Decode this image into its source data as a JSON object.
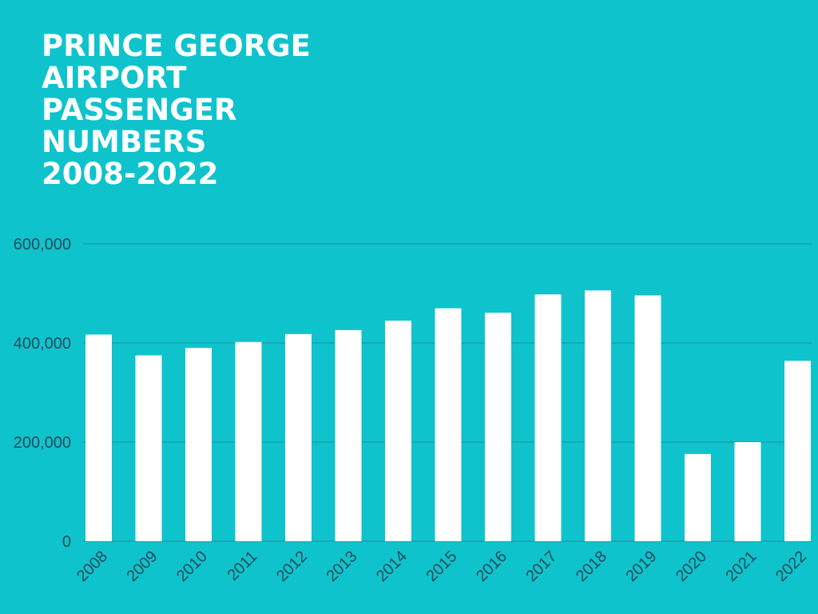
{
  "title_lines": [
    "PRINCE GEORGE",
    "AIRPORT",
    "PASSENGER",
    "NUMBERS",
    "2008-2022"
  ],
  "colors": {
    "background": "#0fc3cc",
    "bar": "#ffffff",
    "grid": "#1b8fa0",
    "axis_text": "#1f4b5c",
    "title": "#ffffff"
  },
  "chart_data": {
    "type": "bar",
    "title": "PRINCE GEORGE AIRPORT PASSENGER NUMBERS 2008-2022",
    "xlabel": "",
    "ylabel": "",
    "ylim": [
      0,
      600000
    ],
    "yticks": [
      0,
      200000,
      400000,
      600000
    ],
    "ytick_labels": [
      "0",
      "200,000",
      "400,000",
      "600,000"
    ],
    "grid": true,
    "categories": [
      "2008",
      "2009",
      "2010",
      "2011",
      "2012",
      "2013",
      "2014",
      "2015",
      "2016",
      "2017",
      "2018",
      "2019",
      "2020",
      "2021",
      "2022"
    ],
    "values": [
      417000,
      375000,
      390000,
      402000,
      418000,
      426000,
      445000,
      470000,
      461000,
      498000,
      506000,
      496000,
      176000,
      200000,
      364000
    ]
  }
}
